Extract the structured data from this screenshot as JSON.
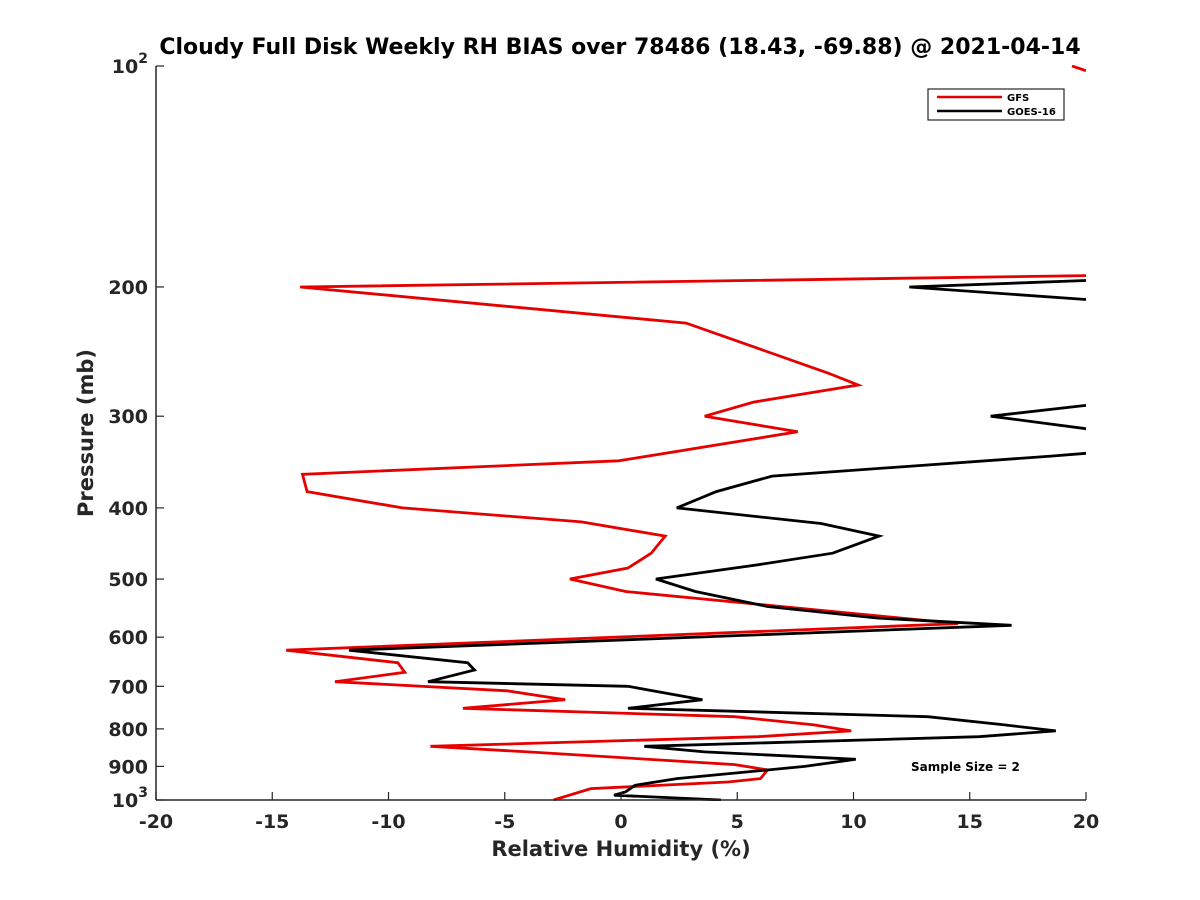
{
  "chart_data": {
    "type": "line",
    "title": "Cloudy Full Disk Weekly RH BIAS over 78486 (18.43, -69.88) @ 2021-04-14",
    "xlabel": "Relative Humidity (%)",
    "ylabel": "Pressure (mb)",
    "xlim": [
      -20,
      20
    ],
    "ylim": [
      100,
      1000
    ],
    "y_scale": "log",
    "y_reversed": true,
    "grid": false,
    "legend_position": "top-right",
    "x_ticks": [
      "-20",
      "-15",
      "-10",
      "-5",
      "0",
      "5",
      "10",
      "15",
      "20"
    ],
    "y_ticks": [
      {
        "value": 100,
        "base": "10",
        "exp": "2"
      },
      {
        "value": 200,
        "label": "200"
      },
      {
        "value": 300,
        "label": "300"
      },
      {
        "value": 400,
        "label": "400"
      },
      {
        "value": 500,
        "label": "500"
      },
      {
        "value": 600,
        "label": "600"
      },
      {
        "value": 700,
        "label": "700"
      },
      {
        "value": 800,
        "label": "800"
      },
      {
        "value": 900,
        "label": "900"
      },
      {
        "value": 1000,
        "base": "10",
        "exp": "3"
      }
    ],
    "series": [
      {
        "name": "GFS",
        "color": "#e60000",
        "points": [
          [
            19.4,
            100
          ],
          [
            20.0,
            101.5
          ],
          [
            null,
            null
          ],
          [
            20.0,
            193
          ],
          [
            -13.8,
            200
          ],
          [
            2.8,
            224
          ],
          [
            8.9,
            262
          ],
          [
            10.2,
            272
          ],
          [
            5.7,
            287
          ],
          [
            3.6,
            300
          ],
          [
            7.6,
            315
          ],
          [
            -0.1,
            345
          ],
          [
            -13.7,
            360
          ],
          [
            -13.5,
            380
          ],
          [
            -9.4,
            400
          ],
          [
            -1.7,
            418
          ],
          [
            1.9,
            437
          ],
          [
            1.3,
            461
          ],
          [
            0.3,
            483
          ],
          [
            -2.2,
            500
          ],
          [
            0.2,
            520
          ],
          [
            14.5,
            575
          ],
          [
            -14.4,
            625
          ],
          [
            -9.6,
            650
          ],
          [
            -9.3,
            670
          ],
          [
            -12.3,
            690
          ],
          [
            -4.9,
            710
          ],
          [
            -2.4,
            730
          ],
          [
            -6.8,
            750
          ],
          [
            4.9,
            770
          ],
          [
            8.3,
            790
          ],
          [
            9.9,
            805
          ],
          [
            5.9,
            820
          ],
          [
            -8.2,
            845
          ],
          [
            -4.0,
            860
          ],
          [
            4.9,
            895
          ],
          [
            6.3,
            910
          ],
          [
            6.0,
            935
          ],
          [
            4.6,
            945
          ],
          [
            -1.3,
            965
          ],
          [
            -2.9,
            1000
          ]
        ]
      },
      {
        "name": "GOES-16",
        "color": "#000000",
        "points": [
          [
            20.0,
            196
          ],
          [
            12.4,
            200
          ],
          [
            20.0,
            208
          ],
          [
            null,
            null
          ],
          [
            20.0,
            290
          ],
          [
            15.9,
            300
          ],
          [
            20.0,
            312
          ],
          [
            null,
            null
          ],
          [
            20.0,
            337
          ],
          [
            18.5,
            340
          ],
          [
            6.5,
            362
          ],
          [
            4.1,
            380
          ],
          [
            2.4,
            400
          ],
          [
            8.6,
            420
          ],
          [
            11.1,
            437
          ],
          [
            9.1,
            461
          ],
          [
            5.9,
            478
          ],
          [
            1.5,
            500
          ],
          [
            3.2,
            520
          ],
          [
            6.3,
            545
          ],
          [
            11.0,
            565
          ],
          [
            16.8,
            578
          ],
          [
            -11.7,
            625
          ],
          [
            -6.6,
            650
          ],
          [
            -6.3,
            665
          ],
          [
            -8.3,
            690
          ],
          [
            0.3,
            700
          ],
          [
            3.5,
            730
          ],
          [
            0.3,
            750
          ],
          [
            13.2,
            770
          ],
          [
            16.5,
            790
          ],
          [
            18.7,
            805
          ],
          [
            15.4,
            820
          ],
          [
            1.0,
            845
          ],
          [
            3.6,
            860
          ],
          [
            10.1,
            880
          ],
          [
            7.9,
            900
          ],
          [
            2.4,
            935
          ],
          [
            0.6,
            955
          ],
          [
            0.2,
            975
          ],
          [
            -0.3,
            985
          ],
          [
            4.3,
            1000
          ]
        ]
      }
    ],
    "annotations": [
      "Sample Size = 2"
    ]
  }
}
